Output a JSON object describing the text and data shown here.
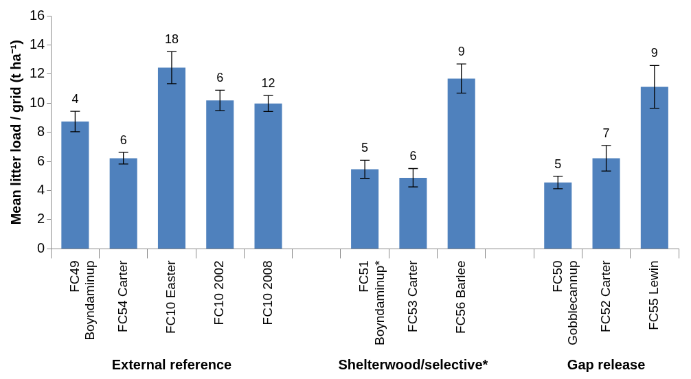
{
  "chart_data": {
    "type": "bar",
    "ylabel": "Mean litter load / grid (t ha⁻¹)",
    "categories": [
      "FC49 Boyndaminup",
      "FC54 Carter",
      "FC10 Easter",
      "FC10 2002",
      "FC10 2008",
      null,
      "FC51 Boyndaminup*",
      "FC53 Carter",
      "FC56 Barlee",
      null,
      "FC50 Gobblecannup",
      "FC52 Carter",
      "FC55 Lewin"
    ],
    "values": [
      8.74,
      6.22,
      12.44,
      10.19,
      9.98,
      null,
      5.46,
      4.88,
      11.69,
      null,
      4.56,
      6.22,
      11.12
    ],
    "errors": [
      0.7,
      0.4,
      1.1,
      0.7,
      0.55,
      null,
      0.62,
      0.63,
      1.0,
      null,
      0.43,
      0.88,
      1.47
    ],
    "color": "#4f81bd",
    "ylim": [
      0,
      16
    ],
    "yticks": [
      0,
      2,
      4,
      6,
      8,
      10,
      12,
      14,
      16
    ],
    "grid": false,
    "annotations": [
      "External reference",
      "Shelterwood/selective*",
      "Gap release",
      {
        "text": "4",
        "x": "FC49 Boyndaminup",
        "y": 9.44
      },
      {
        "text": "6",
        "x": "FC54 Carter",
        "y": 6.62
      },
      {
        "text": "18",
        "x": "FC10 Easter",
        "y": 13.54
      },
      {
        "text": "6",
        "x": "FC10 2002",
        "y": 10.89
      },
      {
        "text": "12",
        "x": "FC10 2008",
        "y": 10.53
      },
      {
        "text": "5",
        "x": "FC51 Boyndaminup*",
        "y": 6.08
      },
      {
        "text": "6",
        "x": "FC53 Carter",
        "y": 5.51
      },
      {
        "text": "9",
        "x": "FC56 Barlee",
        "y": 12.69
      },
      {
        "text": "5",
        "x": "FC50 Gobblecannup",
        "y": 4.99
      },
      {
        "text": "7",
        "x": "FC52 Carter",
        "y": 7.1
      },
      {
        "text": "9",
        "x": "FC55 Lewin",
        "y": 12.59
      }
    ]
  }
}
